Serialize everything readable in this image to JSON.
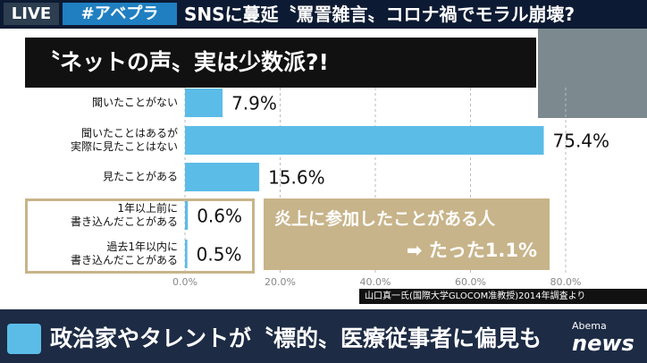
{
  "header": {
    "live": "LIVE",
    "hashtag": "#アベプラ",
    "headline": "SNSに蔓延〝罵詈雑言〟コロナ禍でモラル崩壊?"
  },
  "chart_data": {
    "type": "bar",
    "orientation": "horizontal",
    "title": "〝ネットの声〟実は少数派?!",
    "categories": [
      "聞いたことがない",
      "聞いたことはあるが\n実際に見たことはない",
      "見たことがある",
      "1年以上前に\n書き込んだことがある",
      "過去1年以内に\n書き込んだことがある"
    ],
    "values": [
      7.9,
      75.4,
      15.6,
      0.6,
      0.5
    ],
    "value_labels": [
      "7.9%",
      "75.4%",
      "15.6%",
      "0.6%",
      "0.5%"
    ],
    "color": "#5bbce8",
    "xlim": [
      0,
      80
    ],
    "xticks": [
      {
        "value": 0,
        "label": "0.0%"
      },
      {
        "value": 20,
        "label": "20.0%"
      },
      {
        "value": 40,
        "label": "40.0%"
      },
      {
        "value": 60,
        "label": "60.0%"
      },
      {
        "value": 80,
        "label": "80.0%"
      }
    ],
    "grid": true,
    "annotations": [
      "炎上に参加したことがある人",
      "➡ たった1.1%"
    ],
    "source": "山口真一氏(国際大学GLOCOM准教授)2014年調査より"
  },
  "footer": {
    "caption": "政治家やタレントが〝標的〟医療従事者に偏見も",
    "logo_top": "Abema",
    "logo_bottom": "news"
  }
}
